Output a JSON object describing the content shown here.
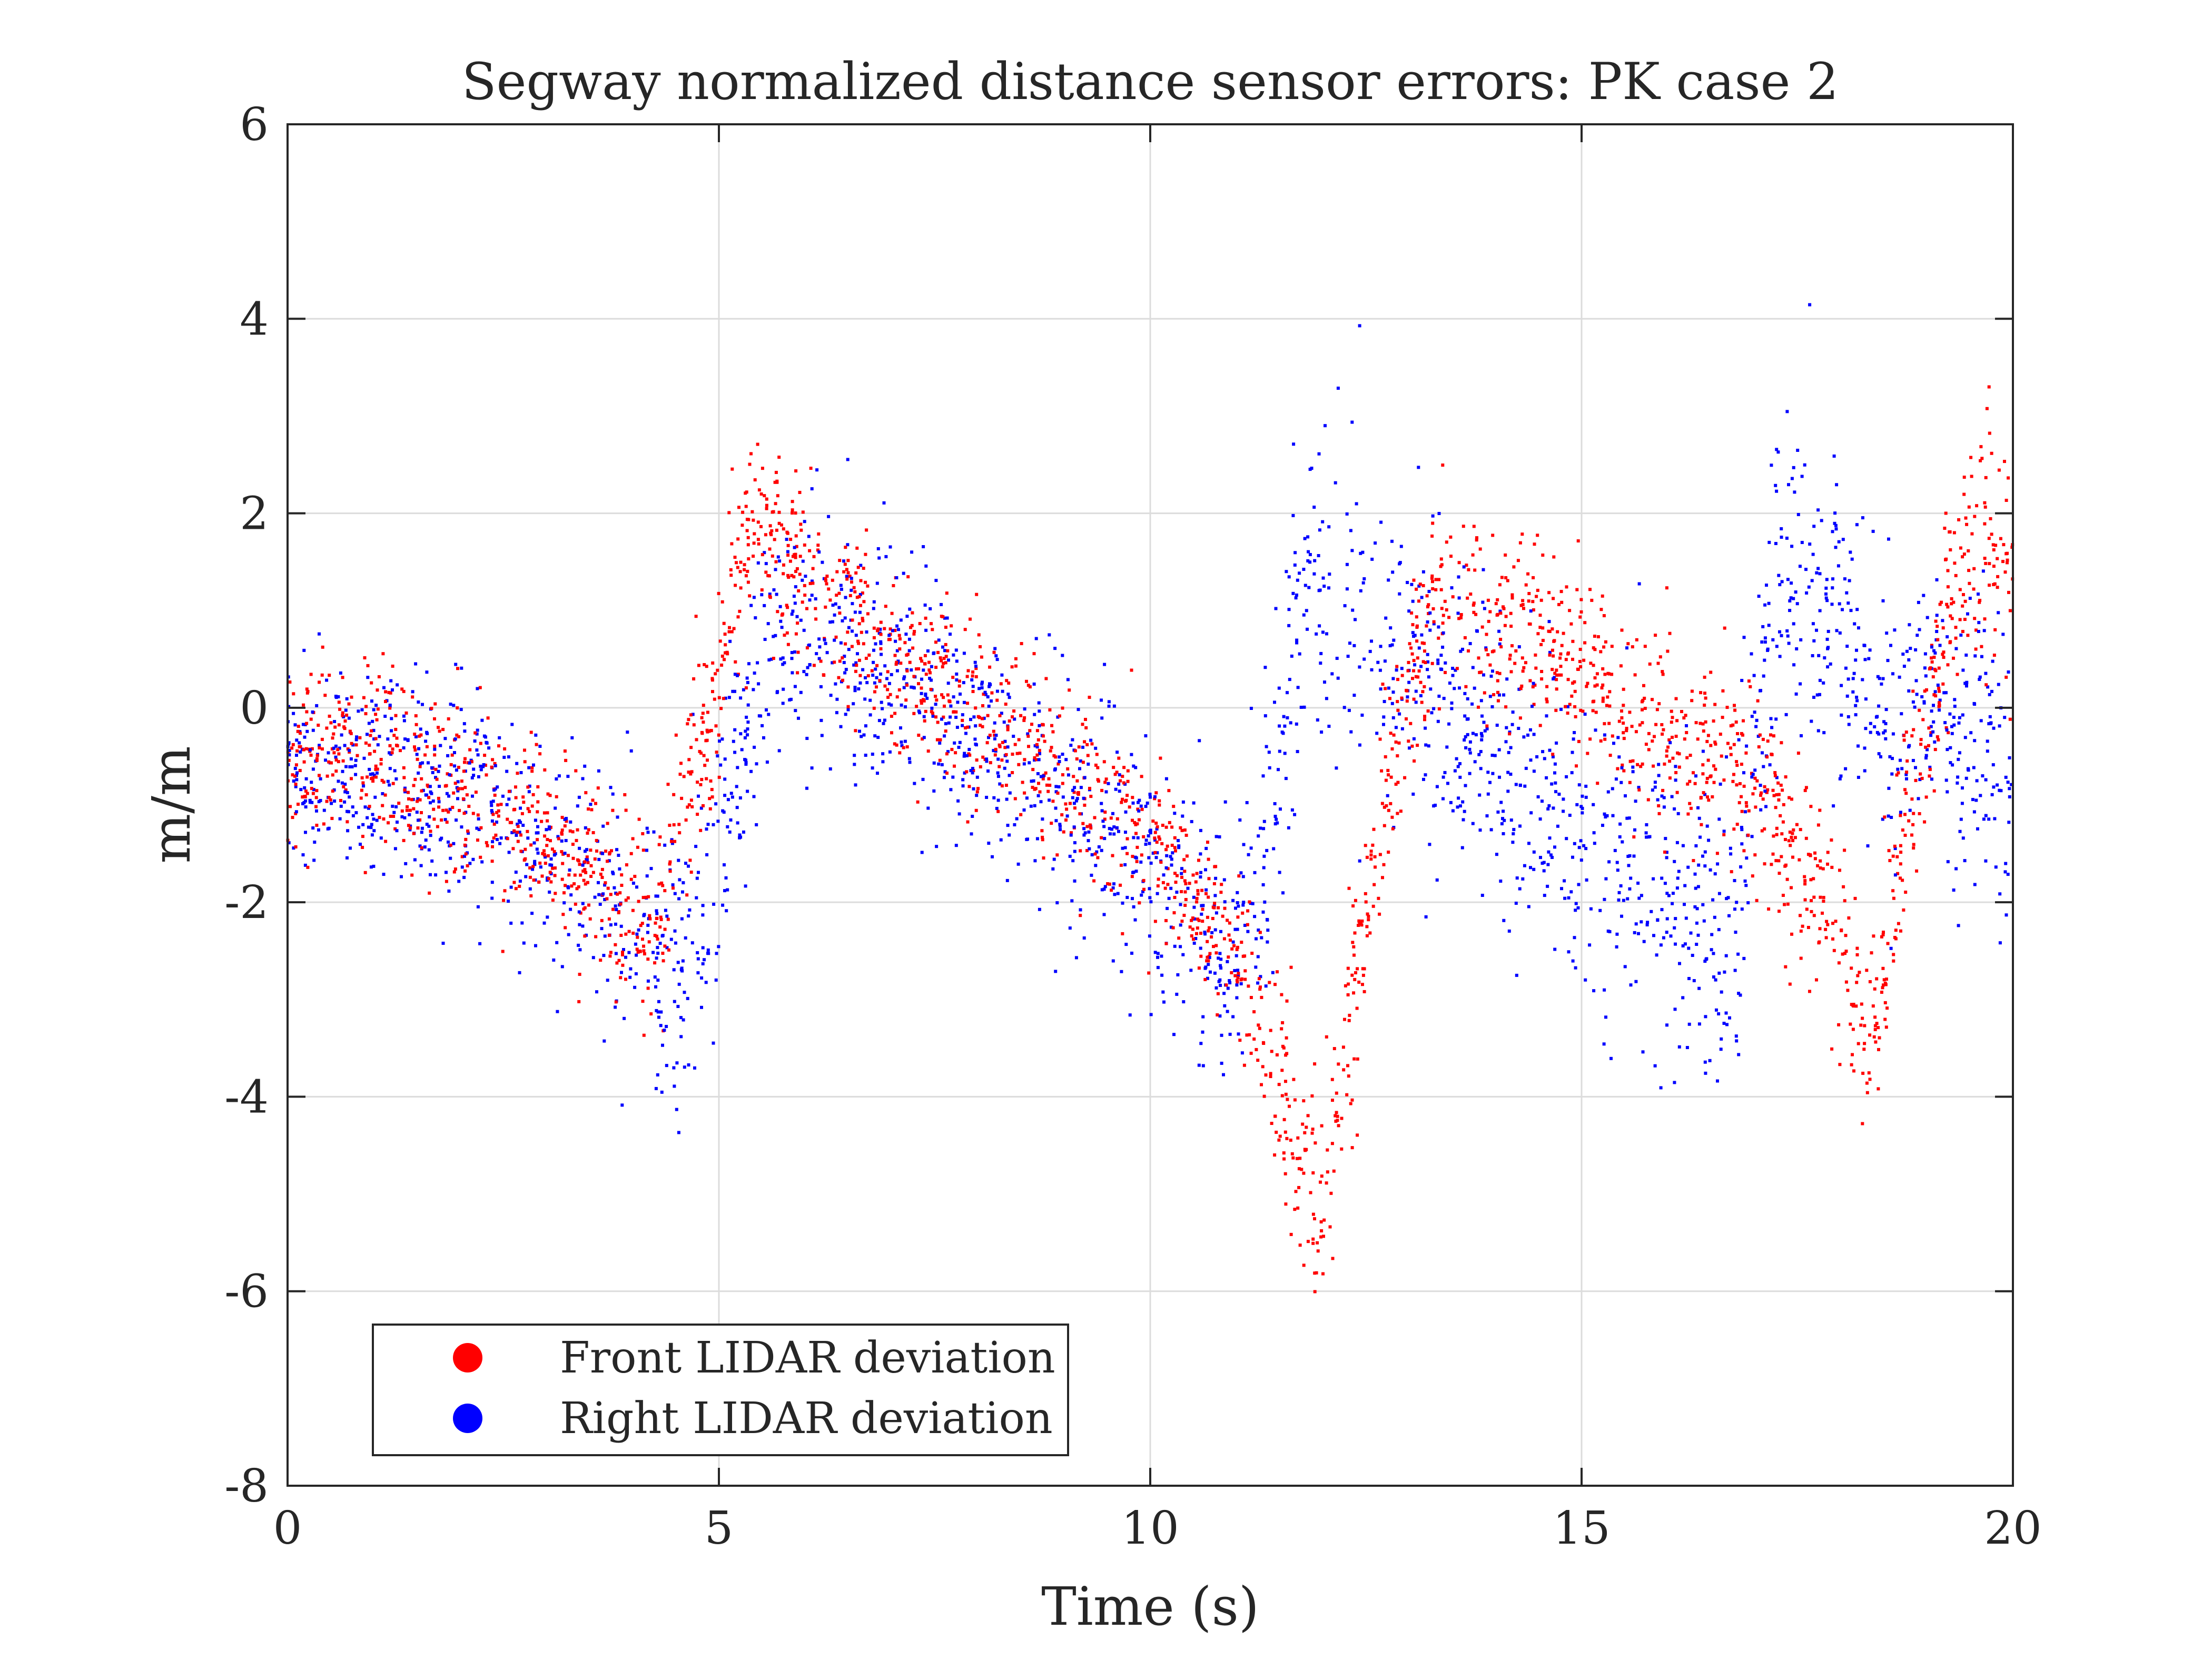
{
  "chart_data": {
    "type": "scatter",
    "title": "Segway normalized distance sensor errors: PK case 2",
    "xlabel": "Time (s)",
    "ylabel": "m/m",
    "xlim": [
      0,
      20
    ],
    "ylim": [
      -8,
      6
    ],
    "x_ticks": [
      0,
      5,
      10,
      15,
      20
    ],
    "x_tick_labels": [
      "0",
      "5",
      "10",
      "15",
      "20"
    ],
    "y_ticks": [
      -8,
      -6,
      -4,
      -2,
      0,
      2,
      4,
      6
    ],
    "y_tick_labels": [
      "-8",
      "-6",
      "-4",
      "-2",
      "0",
      "2",
      "4",
      "6"
    ],
    "grid": true,
    "legend": "bottom-left",
    "series": [
      {
        "name": "Front LIDAR deviation",
        "color": "#ff0000",
        "mean_curve": {
          "x": [
            0,
            1,
            2,
            3,
            4,
            4.3,
            4.6,
            5.0,
            5.4,
            6,
            7,
            8,
            9,
            10,
            11,
            11.5,
            12.0,
            12.5,
            13.0,
            13.3,
            14,
            15,
            16,
            16.5,
            17,
            17.5,
            18.0,
            18.3,
            18.7,
            19.0,
            19.5,
            20
          ],
          "y": [
            -0.4,
            -0.5,
            -0.8,
            -1.3,
            -2.1,
            -2.2,
            -1.0,
            0.3,
            2.0,
            1.3,
            0.6,
            -0.1,
            -0.7,
            -1.4,
            -2.5,
            -3.9,
            -5.2,
            -2.0,
            0.3,
            1.2,
            0.9,
            0.3,
            -0.2,
            -0.5,
            -0.8,
            -1.6,
            -2.3,
            -3.5,
            -1.6,
            -0.2,
            1.9,
            1.5
          ],
          "spread": [
            0.5,
            0.45,
            0.45,
            0.45,
            0.45,
            0.5,
            0.5,
            0.5,
            0.55,
            0.45,
            0.45,
            0.45,
            0.45,
            0.45,
            0.45,
            0.5,
            0.55,
            0.5,
            0.5,
            0.55,
            0.55,
            0.55,
            0.5,
            0.5,
            0.5,
            0.55,
            0.55,
            0.6,
            0.55,
            0.55,
            0.7,
            0.75
          ]
        },
        "point_count": 2600
      },
      {
        "name": "Right LIDAR deviation",
        "color": "#0000ff",
        "mean_curve": {
          "x": [
            0,
            1,
            2,
            3,
            4,
            4.6,
            5.0,
            5.5,
            6,
            7,
            8,
            9,
            10,
            11,
            11.4,
            11.8,
            12.5,
            13.0,
            14,
            15,
            16,
            16.7,
            17.0,
            17.4,
            17.8,
            18.5,
            19.0,
            20
          ],
          "y": [
            -0.6,
            -0.7,
            -0.9,
            -1.4,
            -2.1,
            -2.9,
            -1.4,
            0.6,
            0.9,
            0.3,
            -0.3,
            -0.9,
            -1.6,
            -2.7,
            -1.3,
            1.4,
            0.7,
            0.3,
            -0.5,
            -1.2,
            -2.0,
            -2.5,
            -0.6,
            1.6,
            1.1,
            -0.2,
            0.1,
            -0.6
          ],
          "spread": [
            0.55,
            0.55,
            0.6,
            0.6,
            0.65,
            0.7,
            0.8,
            0.7,
            0.6,
            0.6,
            0.6,
            0.6,
            0.6,
            0.7,
            0.9,
            0.9,
            0.9,
            0.8,
            0.8,
            0.85,
            0.85,
            0.8,
            0.8,
            0.9,
            0.9,
            0.7,
            0.7,
            0.75
          ]
        },
        "point_count": 2600
      }
    ]
  }
}
